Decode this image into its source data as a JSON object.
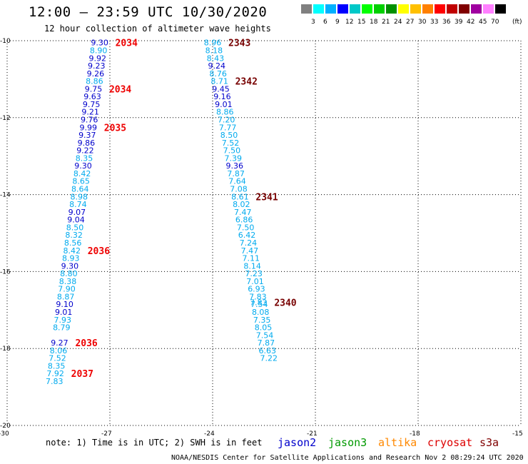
{
  "header": {
    "title": "12:00 — 23:59 UTC 10/30/2020",
    "subtitle": "12 hour collection of altimeter wave heights"
  },
  "scale": {
    "colors": [
      "#808080",
      "#00ffff",
      "#00b0ff",
      "#0000ff",
      "#00c8c8",
      "#00ff00",
      "#00d000",
      "#009000",
      "#ffff00",
      "#ffc000",
      "#ff8000",
      "#ff0000",
      "#c00000",
      "#800000",
      "#a000a0",
      "#ff80ff",
      "#000000"
    ],
    "labels": [
      "3",
      "6",
      "9",
      "12",
      "15",
      "18",
      "21",
      "24",
      "27",
      "30",
      "33",
      "36",
      "39",
      "42",
      "45",
      "70"
    ],
    "unit": "(ft)"
  },
  "note": "note: 1) Time is in UTC; 2) SWH is in feet",
  "satellites": [
    {
      "name": "jason2",
      "color": "#0000cc"
    },
    {
      "name": "jason3",
      "color": "#009900"
    },
    {
      "name": "altika",
      "color": "#ff8800"
    },
    {
      "name": "cryosat",
      "color": "#dd0000"
    },
    {
      "name": "s3a",
      "color": "#800000"
    }
  ],
  "footer": "NOAA/NESDIS Center for Satellite Applications and Research   Nov  2 08:29:24 UTC 2020",
  "chart_data": {
    "type": "scatter",
    "xlim": [
      -30,
      -15
    ],
    "ylim": [
      -20,
      -10
    ],
    "xticks": [
      "-30",
      "-27",
      "-24",
      "-21",
      "-18",
      "-15"
    ],
    "yticks": [
      "-10",
      "-12",
      "-14",
      "-16",
      "-18",
      "-20"
    ],
    "grid": true,
    "colors": {
      "light": "#00aaee",
      "dark": "#0000cc",
      "time_a": "#ee0000",
      "time_b": "#770000"
    },
    "tracks": [
      {
        "name": "track-a",
        "points": [
          [
            -27.3,
            -10.05,
            "9.30",
            "d"
          ],
          [
            -27.33,
            -10.25,
            "8.90",
            "l"
          ],
          [
            -27.36,
            -10.45,
            "9.92",
            "d"
          ],
          [
            -27.39,
            -10.65,
            "9.23",
            "d"
          ],
          [
            -27.42,
            -10.85,
            "9.26",
            "d"
          ],
          [
            -27.45,
            -11.05,
            "8.86",
            "l"
          ],
          [
            -27.48,
            -11.25,
            "9.75",
            "d"
          ],
          [
            -27.51,
            -11.45,
            "9.63",
            "d"
          ],
          [
            -27.54,
            -11.65,
            "9.75",
            "d"
          ],
          [
            -27.57,
            -11.85,
            "9.21",
            "d"
          ],
          [
            -27.6,
            -12.05,
            "9.76",
            "d"
          ],
          [
            -27.63,
            -12.25,
            "9.99",
            "d"
          ],
          [
            -27.66,
            -12.45,
            "9.37",
            "d"
          ],
          [
            -27.69,
            -12.65,
            "9.86",
            "d"
          ],
          [
            -27.72,
            -12.85,
            "9.22",
            "d"
          ],
          [
            -27.75,
            -13.05,
            "8.35",
            "l"
          ],
          [
            -27.78,
            -13.25,
            "9.30",
            "d"
          ],
          [
            -27.81,
            -13.45,
            "8.42",
            "l"
          ],
          [
            -27.84,
            -13.65,
            "8.65",
            "l"
          ],
          [
            -27.87,
            -13.85,
            "8.64",
            "l"
          ],
          [
            -27.9,
            -14.05,
            "8.98",
            "l"
          ],
          [
            -27.93,
            -14.25,
            "8.74",
            "l"
          ],
          [
            -27.96,
            -14.45,
            "9.07",
            "d"
          ],
          [
            -27.99,
            -14.65,
            "9.04",
            "d"
          ],
          [
            -28.02,
            -14.85,
            "8.50",
            "l"
          ],
          [
            -28.05,
            -15.05,
            "8.32",
            "l"
          ],
          [
            -28.08,
            -15.25,
            "8.56",
            "l"
          ],
          [
            -28.11,
            -15.45,
            "8.42",
            "l"
          ],
          [
            -28.14,
            -15.65,
            "8.93",
            "l"
          ],
          [
            -28.17,
            -15.85,
            "9.30",
            "d"
          ],
          [
            -28.2,
            -16.05,
            "8.80",
            "l"
          ],
          [
            -28.23,
            -16.25,
            "8.38",
            "l"
          ],
          [
            -28.26,
            -16.45,
            "7.90",
            "l"
          ],
          [
            -28.29,
            -16.65,
            "8.87",
            "l"
          ],
          [
            -28.32,
            -16.85,
            "9.10",
            "d"
          ],
          [
            -28.35,
            -17.05,
            "9.01",
            "d"
          ],
          [
            -28.38,
            -17.25,
            "7.93",
            "l"
          ],
          [
            -28.41,
            -17.45,
            "8.79",
            "l"
          ],
          [
            -28.47,
            -17.85,
            "9.27",
            "d"
          ],
          [
            -28.5,
            -18.05,
            "8.06",
            "l"
          ],
          [
            -28.53,
            -18.25,
            "7.52",
            "l"
          ],
          [
            -28.56,
            -18.45,
            "8.35",
            "l"
          ],
          [
            -28.59,
            -18.65,
            "7.92",
            "l"
          ],
          [
            -28.62,
            -18.85,
            "7.83",
            "l"
          ]
        ],
        "times": [
          [
            -27.3,
            -10.05,
            "2034",
            "a"
          ],
          [
            -27.48,
            -11.25,
            "2034",
            "a"
          ],
          [
            -27.63,
            -12.25,
            "2035",
            "a"
          ],
          [
            -28.11,
            -15.45,
            "2036",
            "a"
          ],
          [
            -28.47,
            -17.85,
            "2036",
            "a"
          ],
          [
            -28.59,
            -18.65,
            "2037",
            "a"
          ]
        ]
      },
      {
        "name": "track-b",
        "points": [
          [
            -24.0,
            -10.05,
            "8.96",
            "l"
          ],
          [
            -23.96,
            -10.25,
            "8.18",
            "l"
          ],
          [
            -23.92,
            -10.45,
            "8.43",
            "l"
          ],
          [
            -23.88,
            -10.65,
            "9.24",
            "d"
          ],
          [
            -23.84,
            -10.85,
            "8.76",
            "l"
          ],
          [
            -23.8,
            -11.05,
            "8.71",
            "l"
          ],
          [
            -23.76,
            -11.25,
            "9.45",
            "d"
          ],
          [
            -23.72,
            -11.45,
            "9.16",
            "d"
          ],
          [
            -23.68,
            -11.65,
            "9.01",
            "d"
          ],
          [
            -23.64,
            -11.85,
            "8.86",
            "l"
          ],
          [
            -23.6,
            -12.05,
            "7.20",
            "l"
          ],
          [
            -23.56,
            -12.25,
            "7.77",
            "l"
          ],
          [
            -23.52,
            -12.45,
            "8.50",
            "l"
          ],
          [
            -23.48,
            -12.65,
            "7.52",
            "l"
          ],
          [
            -23.44,
            -12.85,
            "7.50",
            "l"
          ],
          [
            -23.4,
            -13.05,
            "7.39",
            "l"
          ],
          [
            -23.36,
            -13.25,
            "9.36",
            "d"
          ],
          [
            -23.32,
            -13.45,
            "7.87",
            "l"
          ],
          [
            -23.28,
            -13.65,
            "7.64",
            "l"
          ],
          [
            -23.24,
            -13.85,
            "7.08",
            "l"
          ],
          [
            -23.2,
            -14.05,
            "8.61",
            "l"
          ],
          [
            -23.16,
            -14.25,
            "8.02",
            "l"
          ],
          [
            -23.12,
            -14.45,
            "7.47",
            "l"
          ],
          [
            -23.08,
            -14.65,
            "6.86",
            "l"
          ],
          [
            -23.04,
            -14.85,
            "7.50",
            "l"
          ],
          [
            -23.0,
            -15.05,
            "6.42",
            "l"
          ],
          [
            -22.96,
            -15.25,
            "7.24",
            "l"
          ],
          [
            -22.92,
            -15.45,
            "7.47",
            "l"
          ],
          [
            -22.88,
            -15.65,
            "7.11",
            "l"
          ],
          [
            -22.84,
            -15.85,
            "8.14",
            "l"
          ],
          [
            -22.8,
            -16.05,
            "7.23",
            "l"
          ],
          [
            -22.76,
            -16.25,
            "7.01",
            "l"
          ],
          [
            -22.72,
            -16.45,
            "6.93",
            "l"
          ],
          [
            -22.68,
            -16.65,
            "7.83",
            "l"
          ],
          [
            -22.66,
            -16.8,
            "7.83",
            "l"
          ],
          [
            -22.64,
            -16.85,
            "7.54",
            "l"
          ],
          [
            -22.6,
            -17.05,
            "8.08",
            "l"
          ],
          [
            -22.56,
            -17.25,
            "7.35",
            "l"
          ],
          [
            -22.52,
            -17.45,
            "8.05",
            "l"
          ],
          [
            -22.48,
            -17.65,
            "7.54",
            "l"
          ],
          [
            -22.44,
            -17.85,
            "7.87",
            "l"
          ],
          [
            -22.4,
            -18.05,
            "6.63",
            "l"
          ],
          [
            -22.36,
            -18.25,
            "7.22",
            "l"
          ]
        ],
        "times": [
          [
            -24.0,
            -10.05,
            "2343",
            "b"
          ],
          [
            -23.8,
            -11.05,
            "2342",
            "b"
          ],
          [
            -23.2,
            -14.05,
            "2341",
            "b"
          ],
          [
            -22.66,
            -16.8,
            "2340",
            "b"
          ]
        ]
      }
    ]
  }
}
